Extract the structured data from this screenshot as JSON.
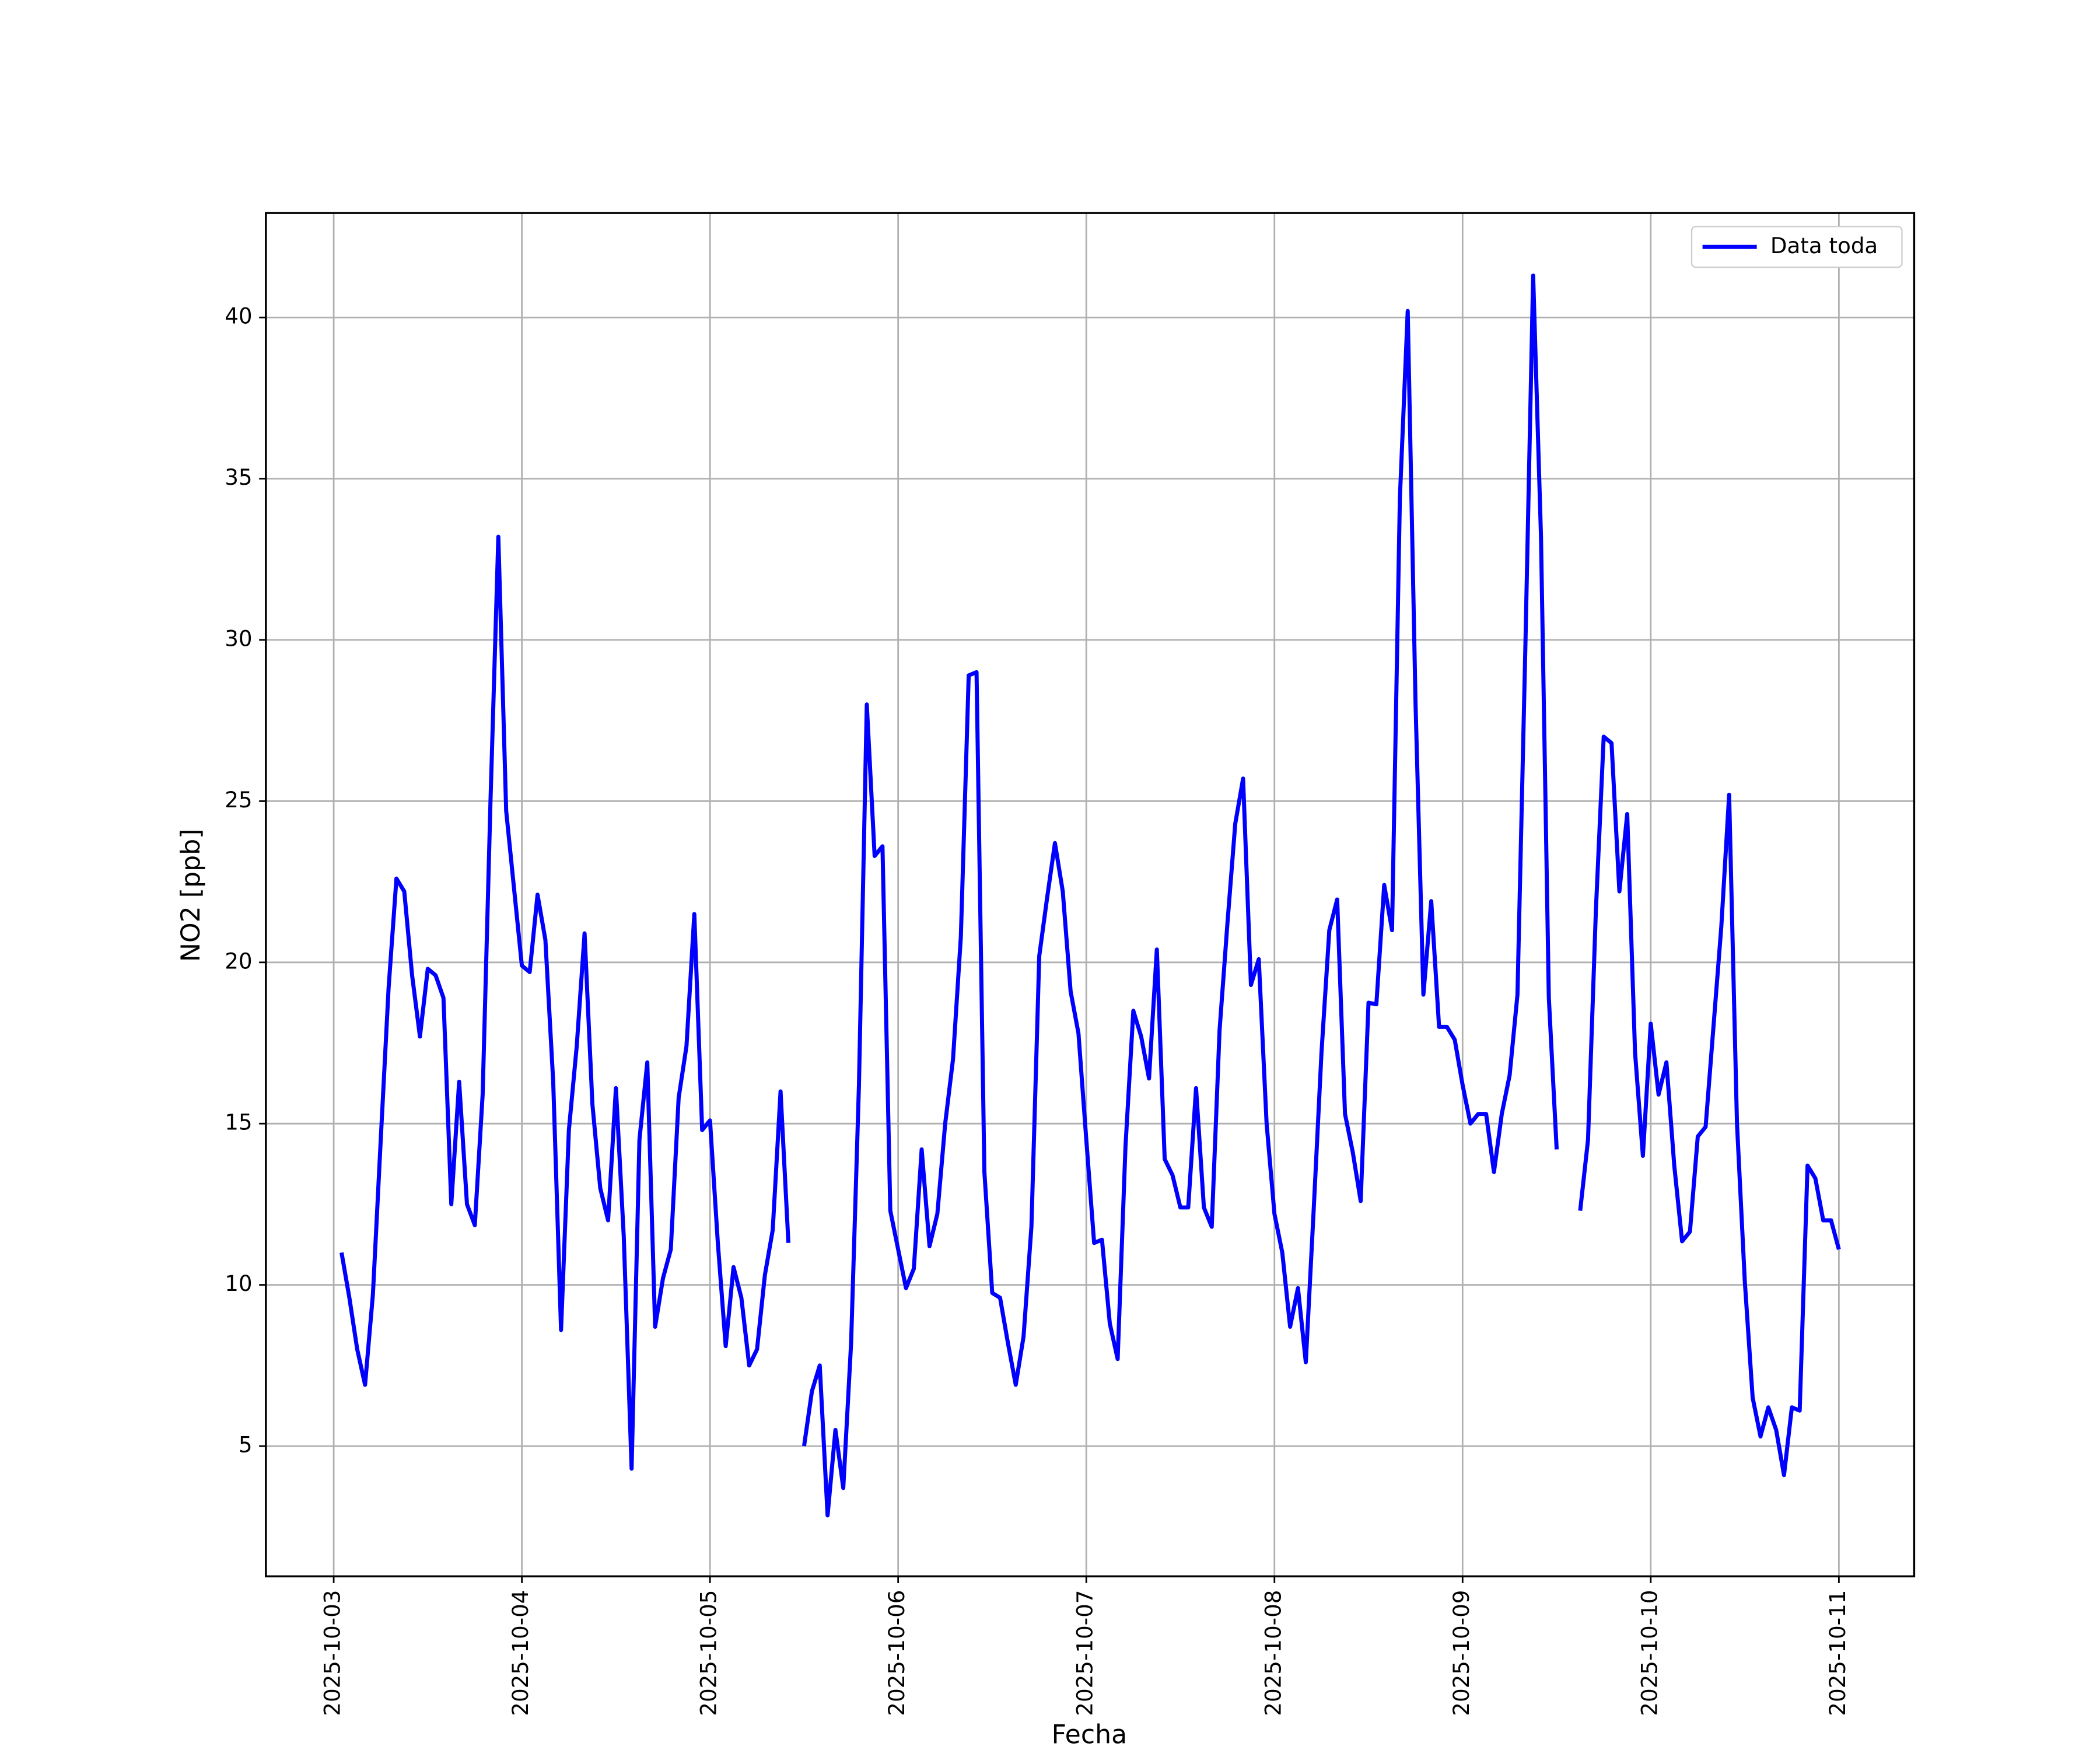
{
  "chart_data": {
    "type": "line",
    "xlabel": "Fecha",
    "ylabel": "NO2 [ppb]",
    "x": [
      1,
      2,
      3,
      4,
      5,
      6,
      7,
      8,
      9,
      10,
      11,
      12,
      13,
      14,
      15,
      16,
      17,
      18,
      19,
      20,
      21,
      22,
      23,
      24,
      25,
      26,
      27,
      28,
      29,
      30,
      31,
      32,
      33,
      34,
      35,
      36,
      37,
      38,
      39,
      40,
      41,
      42,
      43,
      44,
      45,
      46,
      47,
      48,
      49,
      50,
      51,
      52,
      53,
      54,
      55,
      56,
      57,
      58,
      59,
      60,
      61,
      62,
      63,
      64,
      65,
      66,
      67,
      68,
      69,
      70,
      71,
      72,
      73,
      74,
      75,
      76,
      77,
      78,
      79,
      80,
      81,
      82,
      83,
      84,
      85,
      86,
      87,
      88,
      89,
      90,
      91,
      92,
      93,
      94,
      95,
      96,
      97,
      98,
      99,
      100,
      101,
      102,
      103,
      104,
      105,
      106,
      107,
      108,
      109,
      110,
      111,
      112,
      113,
      114,
      115,
      116,
      117,
      118,
      119,
      120,
      121,
      122,
      123,
      124,
      125,
      126,
      127,
      128,
      129,
      130,
      131,
      132,
      133,
      134,
      135,
      136,
      137,
      138,
      139,
      140,
      141,
      142,
      143,
      144,
      145,
      146,
      147,
      148,
      149,
      150,
      151,
      152,
      153,
      154,
      155,
      156,
      157,
      158,
      159,
      160,
      161,
      162,
      163,
      164,
      165,
      166,
      167,
      168,
      169,
      170,
      171,
      172,
      173,
      174,
      175,
      176,
      177,
      178,
      179,
      180,
      181,
      182,
      183,
      184,
      185,
      186,
      187,
      188,
      189,
      190,
      191,
      192
    ],
    "series": [
      {
        "name": "Data toda",
        "color": "#0000ff",
        "values": [
          11.0,
          9.6,
          8.0,
          6.9,
          9.7,
          14.5,
          19.2,
          22.6,
          22.2,
          19.6,
          17.7,
          19.8,
          19.6,
          18.9,
          12.5,
          16.3,
          12.5,
          11.85,
          15.9,
          25,
          33.2,
          24.7,
          22.3,
          19.9,
          19.7,
          22.1,
          20.7,
          16.3,
          8.6,
          14.8,
          17.4,
          20.9,
          15.6,
          13.0,
          12.0,
          16.1,
          11.5,
          4.3,
          14.5,
          16.9,
          8.7,
          10.2,
          11.1,
          15.8,
          17.4,
          21.5,
          14.8,
          15.1,
          11.3,
          8.1,
          10.55,
          9.6,
          7.5,
          8.0,
          10.3,
          11.7,
          16.0,
          11.3,
          null,
          5.0,
          6.7,
          7.5,
          2.85,
          5.5,
          3.7,
          8.2,
          16.2,
          28.0,
          23.3,
          23.6,
          12.3,
          11.1,
          9.9,
          10.5,
          14.2,
          11.2,
          12.2,
          15.0,
          17.0,
          20.8,
          28.9,
          29.0,
          13.5,
          9.75,
          9.6,
          8.2,
          6.9,
          8.4,
          11.8,
          20.2,
          22.0,
          23.7,
          22.2,
          19.1,
          17.8,
          14.5,
          11.3,
          11.4,
          8.8,
          7.7,
          14.3,
          18.5,
          17.7,
          16.4,
          20.4,
          13.9,
          13.4,
          12.4,
          12.4,
          16.1,
          12.4,
          11.8,
          17.9,
          21.2,
          24.3,
          25.7,
          19.3,
          20.1,
          15.0,
          12.2,
          11.0,
          8.7,
          9.9,
          7.6,
          12.3,
          17.2,
          21.0,
          21.95,
          15.3,
          14.1,
          12.6,
          18.75,
          18.7,
          22.4,
          21.0,
          34.4,
          40.2,
          28,
          19.0,
          21.9,
          18.0,
          18.0,
          17.6,
          16.2,
          15.0,
          15.3,
          15.3,
          13.5,
          15.3,
          16.5,
          19.0,
          29.7,
          41.3,
          33.2,
          18.9,
          14.2,
          null,
          null,
          12.3,
          14.5,
          21.6,
          27.0,
          26.8,
          22.2,
          24.6,
          17.2,
          14.0,
          18.1,
          15.9,
          16.9,
          13.7,
          11.35,
          11.65,
          14.6,
          14.9,
          18.0,
          21.1,
          25.2,
          15.0,
          10.1,
          6.5,
          5.3,
          6.2,
          5.5,
          4.1,
          6.2,
          6.1,
          13.7,
          13.3,
          12.0,
          12.0,
          11.1
        ]
      }
    ],
    "xlim": [
      -8.65,
      201.6
    ],
    "xticks": [
      {
        "value": 0,
        "label": "2025-10-03"
      },
      {
        "value": 24,
        "label": "2025-10-04"
      },
      {
        "value": 48,
        "label": "2025-10-05"
      },
      {
        "value": 72,
        "label": "2025-10-06"
      },
      {
        "value": 96,
        "label": "2025-10-07"
      },
      {
        "value": 120,
        "label": "2025-10-08"
      },
      {
        "value": 144,
        "label": "2025-10-09"
      },
      {
        "value": 168,
        "label": "2025-10-10"
      },
      {
        "value": 192,
        "label": "2025-10-11"
      }
    ],
    "ylim": [
      0.96,
      43.24
    ],
    "yticks": [
      5,
      10,
      15,
      20,
      25,
      30,
      35,
      40
    ],
    "grid": true,
    "legend": "upper right"
  }
}
